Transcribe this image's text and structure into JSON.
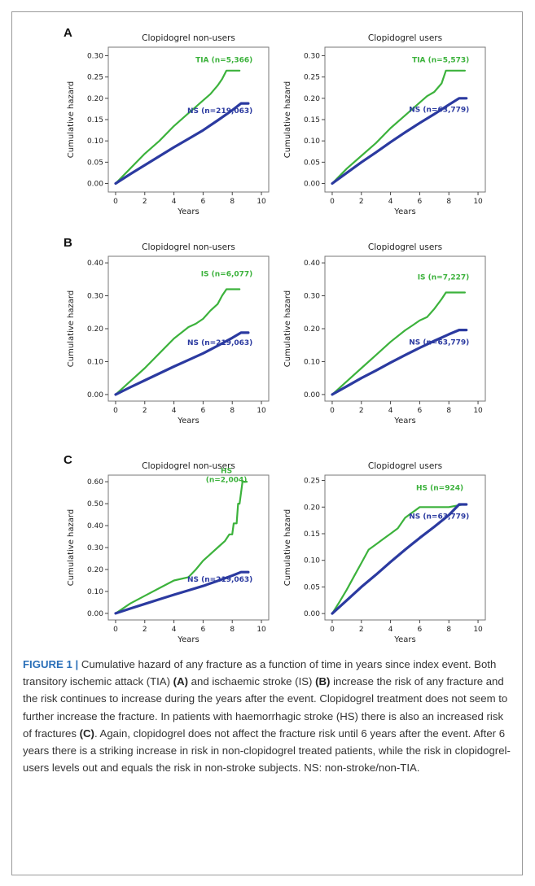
{
  "panels": [
    {
      "letter": "A"
    },
    {
      "letter": "B"
    },
    {
      "letter": "C"
    }
  ],
  "colors": {
    "event": "#3cb23c",
    "nonstroke": "#2b3aa0",
    "plot_border": "#777777"
  },
  "chart_data": [
    {
      "type": "line",
      "panel": "A",
      "title": "Clopidogrel non-users",
      "xlabel": "Years",
      "ylabel": "Cumulative hazard",
      "xlim": [
        -0.5,
        10.5
      ],
      "ylim": [
        -0.02,
        0.32
      ],
      "xticks": [
        0,
        2,
        4,
        6,
        8,
        10
      ],
      "yticks": [
        0.0,
        0.05,
        0.1,
        0.15,
        0.2,
        0.25,
        0.3
      ],
      "ytick_labels": [
        "0.00",
        "0.05",
        "0.10",
        "0.15",
        "0.20",
        "0.25",
        "0.30"
      ],
      "series": [
        {
          "name": "TIA (n=5,366)",
          "color": "#3cb23c",
          "x": [
            0,
            1,
            2,
            3,
            4,
            5,
            5.5,
            6,
            6.5,
            7,
            7.3,
            7.6,
            8,
            8.5
          ],
          "y": [
            0,
            0.035,
            0.07,
            0.1,
            0.135,
            0.165,
            0.18,
            0.195,
            0.21,
            0.23,
            0.245,
            0.265,
            0.265,
            0.265
          ]
        },
        {
          "name": "NS (n=219,063)",
          "color": "#2b3aa0",
          "x": [
            0,
            1,
            2,
            3,
            4,
            5,
            6,
            7,
            8,
            8.6,
            9.1
          ],
          "y": [
            0,
            0.022,
            0.043,
            0.064,
            0.085,
            0.105,
            0.125,
            0.148,
            0.172,
            0.188,
            0.188
          ]
        }
      ]
    },
    {
      "type": "line",
      "panel": "A",
      "title": "Clopidogrel users",
      "xlabel": "Years",
      "ylabel": "Cumulative hazard",
      "xlim": [
        -0.5,
        10.5
      ],
      "ylim": [
        -0.02,
        0.32
      ],
      "xticks": [
        0,
        2,
        4,
        6,
        8,
        10
      ],
      "yticks": [
        0.0,
        0.05,
        0.1,
        0.15,
        0.2,
        0.25,
        0.3
      ],
      "ytick_labels": [
        "0.00",
        "0.05",
        "0.10",
        "0.15",
        "0.20",
        "0.25",
        "0.30"
      ],
      "series": [
        {
          "name": "TIA (n=5,573)",
          "color": "#3cb23c",
          "x": [
            0,
            1,
            2,
            3,
            4,
            5,
            6,
            6.5,
            7,
            7.5,
            7.8,
            9.1
          ],
          "y": [
            0,
            0.035,
            0.065,
            0.095,
            0.13,
            0.16,
            0.19,
            0.205,
            0.215,
            0.235,
            0.265,
            0.265
          ]
        },
        {
          "name": "NS (n=63,779)",
          "color": "#2b3aa0",
          "x": [
            0,
            1,
            2,
            3,
            4,
            5,
            6,
            7,
            8,
            8.7,
            9.2
          ],
          "y": [
            0,
            0.025,
            0.05,
            0.073,
            0.097,
            0.12,
            0.142,
            0.163,
            0.185,
            0.2,
            0.2
          ]
        }
      ]
    },
    {
      "type": "line",
      "panel": "B",
      "title": "Clopidogrel non-users",
      "xlabel": "Years",
      "ylabel": "Cumulative hazard",
      "xlim": [
        -0.5,
        10.5
      ],
      "ylim": [
        -0.02,
        0.42
      ],
      "xticks": [
        0,
        2,
        4,
        6,
        8,
        10
      ],
      "yticks": [
        0.0,
        0.1,
        0.2,
        0.3,
        0.4
      ],
      "ytick_labels": [
        "0.00",
        "0.10",
        "0.20",
        "0.30",
        "0.40"
      ],
      "series": [
        {
          "name": "IS (n=6,077)",
          "color": "#3cb23c",
          "x": [
            0,
            1,
            2,
            3,
            4,
            5,
            5.5,
            6,
            6.5,
            7,
            7.3,
            7.6,
            8,
            8.5
          ],
          "y": [
            0,
            0.04,
            0.08,
            0.125,
            0.17,
            0.205,
            0.215,
            0.23,
            0.255,
            0.275,
            0.3,
            0.32,
            0.32,
            0.32
          ]
        },
        {
          "name": "NS (n=219,063)",
          "color": "#2b3aa0",
          "x": [
            0,
            1,
            2,
            3,
            4,
            5,
            6,
            7,
            8,
            8.6,
            9.1
          ],
          "y": [
            0,
            0.022,
            0.043,
            0.064,
            0.085,
            0.105,
            0.125,
            0.148,
            0.172,
            0.188,
            0.188
          ]
        }
      ]
    },
    {
      "type": "line",
      "panel": "B",
      "title": "Clopidogrel users",
      "xlabel": "Years",
      "ylabel": "Cumulative hazard",
      "xlim": [
        -0.5,
        10.5
      ],
      "ylim": [
        -0.02,
        0.42
      ],
      "xticks": [
        0,
        2,
        4,
        6,
        8,
        10
      ],
      "yticks": [
        0.0,
        0.1,
        0.2,
        0.3,
        0.4
      ],
      "ytick_labels": [
        "0.00",
        "0.10",
        "0.20",
        "0.30",
        "0.40"
      ],
      "series": [
        {
          "name": "IS (n=7,227)",
          "color": "#3cb23c",
          "x": [
            0,
            1,
            2,
            3,
            4,
            5,
            5.5,
            6,
            6.5,
            7,
            7.5,
            7.8,
            9.1
          ],
          "y": [
            0,
            0.04,
            0.08,
            0.12,
            0.16,
            0.195,
            0.21,
            0.225,
            0.235,
            0.26,
            0.29,
            0.31,
            0.31
          ]
        },
        {
          "name": "NS (n=63,779)",
          "color": "#2b3aa0",
          "x": [
            0,
            1,
            2,
            3,
            4,
            5,
            6,
            7,
            8,
            8.7,
            9.2
          ],
          "y": [
            0,
            0.025,
            0.05,
            0.073,
            0.097,
            0.12,
            0.142,
            0.163,
            0.183,
            0.196,
            0.196
          ]
        }
      ]
    },
    {
      "type": "line",
      "panel": "C",
      "title": "Clopidogrel non-users",
      "xlabel": "Years",
      "ylabel": "Cumulative hazard",
      "xlim": [
        -0.5,
        10.5
      ],
      "ylim": [
        -0.03,
        0.63
      ],
      "xticks": [
        0,
        2,
        4,
        6,
        8,
        10
      ],
      "yticks": [
        0.0,
        0.1,
        0.2,
        0.3,
        0.4,
        0.5,
        0.6
      ],
      "ytick_labels": [
        "0.00",
        "0.10",
        "0.20",
        "0.30",
        "0.40",
        "0.50",
        "0.60"
      ],
      "series": [
        {
          "name": "HS (n=2,004)",
          "color": "#3cb23c",
          "x": [
            0,
            1,
            2,
            3,
            4,
            5,
            5.5,
            6,
            6.5,
            7,
            7.5,
            7.8,
            8,
            8.1,
            8.3,
            8.4,
            8.5,
            8.7,
            8.8,
            9.0
          ],
          "y": [
            0,
            0.045,
            0.08,
            0.115,
            0.15,
            0.165,
            0.2,
            0.24,
            0.27,
            0.3,
            0.33,
            0.36,
            0.36,
            0.41,
            0.41,
            0.5,
            0.5,
            0.6,
            0.6,
            0.6
          ]
        },
        {
          "name": "NS (n=219,063)",
          "color": "#2b3aa0",
          "x": [
            0,
            1,
            2,
            3,
            4,
            5,
            6,
            7,
            8,
            8.6,
            9.1
          ],
          "y": [
            0,
            0.022,
            0.043,
            0.064,
            0.085,
            0.105,
            0.125,
            0.148,
            0.172,
            0.188,
            0.188
          ]
        }
      ]
    },
    {
      "type": "line",
      "panel": "C",
      "title": "Clopidogrel users",
      "xlabel": "Years",
      "ylabel": "Cumulative hazard",
      "xlim": [
        -0.5,
        10.5
      ],
      "ylim": [
        -0.012,
        0.26
      ],
      "xticks": [
        0,
        2,
        4,
        6,
        8,
        10
      ],
      "yticks": [
        0.0,
        0.05,
        0.1,
        0.15,
        0.2,
        0.25
      ],
      "ytick_labels": [
        "0.00",
        "0.05",
        "0.10",
        "0.15",
        "0.20",
        "0.25"
      ],
      "series": [
        {
          "name": "HS (n=924)",
          "color": "#3cb23c",
          "x": [
            0,
            0.5,
            1,
            1.5,
            2,
            2.5,
            3,
            3.5,
            4,
            4.5,
            5,
            5.5,
            6,
            6.5,
            7,
            8,
            9
          ],
          "y": [
            0,
            0.022,
            0.045,
            0.07,
            0.095,
            0.12,
            0.13,
            0.14,
            0.15,
            0.16,
            0.18,
            0.19,
            0.2,
            0.2,
            0.2,
            0.2,
            0.205
          ]
        },
        {
          "name": "NS (n=63,779)",
          "color": "#2b3aa0",
          "x": [
            0,
            1,
            2,
            3,
            4,
            5,
            6,
            7,
            8,
            8.7,
            9.2
          ],
          "y": [
            0,
            0.025,
            0.05,
            0.073,
            0.097,
            0.12,
            0.142,
            0.163,
            0.185,
            0.205,
            0.205
          ]
        }
      ]
    }
  ],
  "caption": {
    "label": "FIGURE 1 |",
    "p1": " Cumulative hazard of any fracture as a function of time in years since index event. Both transitory ischemic attack (TIA) ",
    "r1": "(A)",
    "p2": " and ischaemic stroke (IS) ",
    "r2": "(B)",
    "p3": " increase the risk of any fracture and the risk continues to increase during the years after the event. Clopidogrel treatment does not seem to further increase the fracture. In patients with haemorrhagic stroke (HS) there is also an increased risk of fractures ",
    "r3": "(C)",
    "p4": ". Again, clopidogrel does not affect the fracture risk until 6 years after the event. After 6 years there is a striking increase in risk in non-clopidogrel treated patients, while the risk in clopidogrel-users levels out and equals the risk in non-stroke subjects. NS: non-stroke/non-TIA."
  }
}
